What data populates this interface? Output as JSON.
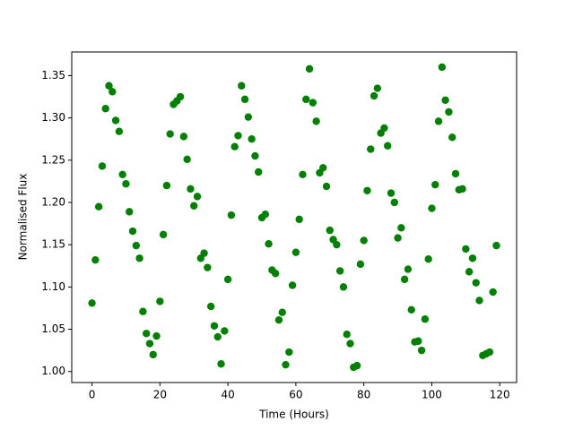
{
  "chart_data": {
    "type": "scatter",
    "x_label": "Time (Hours)",
    "y_label": "Normalised Flux",
    "color": "#008000",
    "x": [
      0,
      1,
      2,
      3,
      4,
      5,
      6,
      7,
      8,
      9,
      10,
      11,
      12,
      13,
      14,
      15,
      16,
      17,
      18,
      19,
      20,
      21,
      22,
      23,
      24,
      25,
      26,
      27,
      28,
      29,
      30,
      31,
      32,
      33,
      34,
      35,
      36,
      37,
      38,
      39,
      40,
      41,
      42,
      43,
      44,
      45,
      46,
      47,
      48,
      49,
      50,
      51,
      52,
      53,
      54,
      55,
      56,
      57,
      58,
      59,
      60,
      61,
      62,
      63,
      64,
      65,
      66,
      67,
      68,
      69,
      70,
      71,
      72,
      73,
      74,
      75,
      76,
      77,
      78,
      79,
      80,
      81,
      82,
      83,
      84,
      85,
      86,
      87,
      88,
      89,
      90,
      91,
      92,
      93,
      94,
      95,
      96,
      97,
      98,
      99,
      100,
      101,
      102,
      103,
      104,
      105,
      106,
      107,
      108,
      109,
      110,
      111,
      112,
      113,
      114,
      115,
      116,
      117,
      118,
      119
    ],
    "values": [
      1.081,
      1.132,
      1.195,
      1.243,
      1.311,
      1.338,
      1.331,
      1.297,
      1.284,
      1.233,
      1.222,
      1.189,
      1.166,
      1.149,
      1.134,
      1.071,
      1.045,
      1.033,
      1.02,
      1.042,
      1.083,
      1.162,
      1.22,
      1.281,
      1.316,
      1.32,
      1.325,
      1.278,
      1.251,
      1.216,
      1.196,
      1.207,
      1.134,
      1.14,
      1.123,
      1.077,
      1.054,
      1.041,
      1.009,
      1.048,
      1.109,
      1.185,
      1.266,
      1.279,
      1.338,
      1.322,
      1.301,
      1.275,
      1.255,
      1.236,
      1.182,
      1.186,
      1.151,
      1.12,
      1.116,
      1.061,
      1.07,
      1.008,
      1.023,
      1.102,
      1.141,
      1.18,
      1.233,
      1.322,
      1.358,
      1.318,
      1.296,
      1.235,
      1.241,
      1.219,
      1.167,
      1.156,
      1.15,
      1.119,
      1.1,
      1.044,
      1.033,
      1.005,
      1.007,
      1.127,
      1.155,
      1.214,
      1.263,
      1.326,
      1.335,
      1.282,
      1.288,
      1.267,
      1.211,
      1.2,
      1.158,
      1.17,
      1.109,
      1.121,
      1.073,
      1.035,
      1.036,
      1.025,
      1.062,
      1.133,
      1.193,
      1.221,
      1.296,
      1.36,
      1.321,
      1.307,
      1.277,
      1.234,
      1.215,
      1.216,
      1.145,
      1.118,
      1.134,
      1.105,
      1.084,
      1.019,
      1.021,
      1.023,
      1.094,
      1.149
    ],
    "xlim": [
      -5.95,
      124.95
    ],
    "xticks": [
      0,
      20,
      40,
      60,
      80,
      100,
      120
    ],
    "ylim": [
      0.987,
      1.378
    ],
    "yticks": [
      {
        "value": 1.0,
        "label": "1.00"
      },
      {
        "value": 1.05,
        "label": "1.05"
      },
      {
        "value": 1.1,
        "label": "1.10"
      },
      {
        "value": 1.15,
        "label": "1.15"
      },
      {
        "value": 1.2,
        "label": "1.20"
      },
      {
        "value": 1.25,
        "label": "1.25"
      },
      {
        "value": 1.3,
        "label": "1.30"
      },
      {
        "value": 1.35,
        "label": "1.35"
      }
    ]
  }
}
